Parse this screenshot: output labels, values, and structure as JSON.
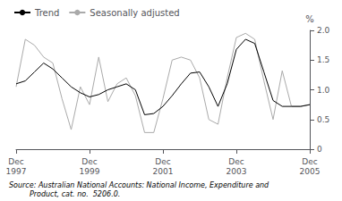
{
  "chart_data": {
    "type": "line",
    "ylabel": "%",
    "annotation": "Source: Australian National Accounts: National Income, Expenditure and\n         Product, cat. no.  5206.0.",
    "categories": [
      "Dec\n1997",
      null,
      null,
      null,
      null,
      null,
      null,
      null,
      "Dec\n1999",
      null,
      null,
      null,
      null,
      null,
      null,
      null,
      "Dec\n2001",
      null,
      null,
      null,
      null,
      null,
      null,
      null,
      "Dec\n2003",
      null,
      null,
      null,
      null,
      null,
      null,
      null,
      "Dec\n2005"
    ],
    "series": [
      {
        "name": "Trend",
        "color": "#000000",
        "values": [
          1.1,
          1.15,
          1.3,
          1.45,
          1.35,
          1.2,
          1.05,
          0.95,
          0.88,
          0.92,
          1.0,
          1.05,
          1.1,
          1.0,
          0.58,
          0.6,
          0.72,
          0.9,
          1.1,
          1.28,
          1.3,
          1.05,
          0.72,
          1.1,
          1.68,
          1.85,
          1.78,
          1.3,
          0.82,
          0.72,
          0.72,
          0.72,
          0.75
        ]
      },
      {
        "name": "Seasonally adjusted",
        "color": "#aaaaaa",
        "values": [
          1.05,
          1.85,
          1.75,
          1.55,
          1.45,
          0.85,
          0.33,
          1.05,
          0.75,
          1.55,
          0.8,
          1.1,
          1.2,
          0.9,
          0.28,
          0.28,
          0.85,
          1.5,
          1.55,
          1.5,
          1.2,
          0.5,
          0.42,
          1.2,
          1.88,
          1.95,
          1.85,
          1.15,
          0.5,
          1.32,
          0.72,
          0.72,
          0.75
        ]
      }
    ],
    "ylim": [
      0,
      2.0
    ],
    "yticks": [
      0,
      0.5,
      {
        "value": 1.0,
        "label": "1.0"
      },
      1.5,
      {
        "value": 2.0,
        "label": "2.0"
      }
    ],
    "grid": false,
    "legend": "upper left"
  }
}
